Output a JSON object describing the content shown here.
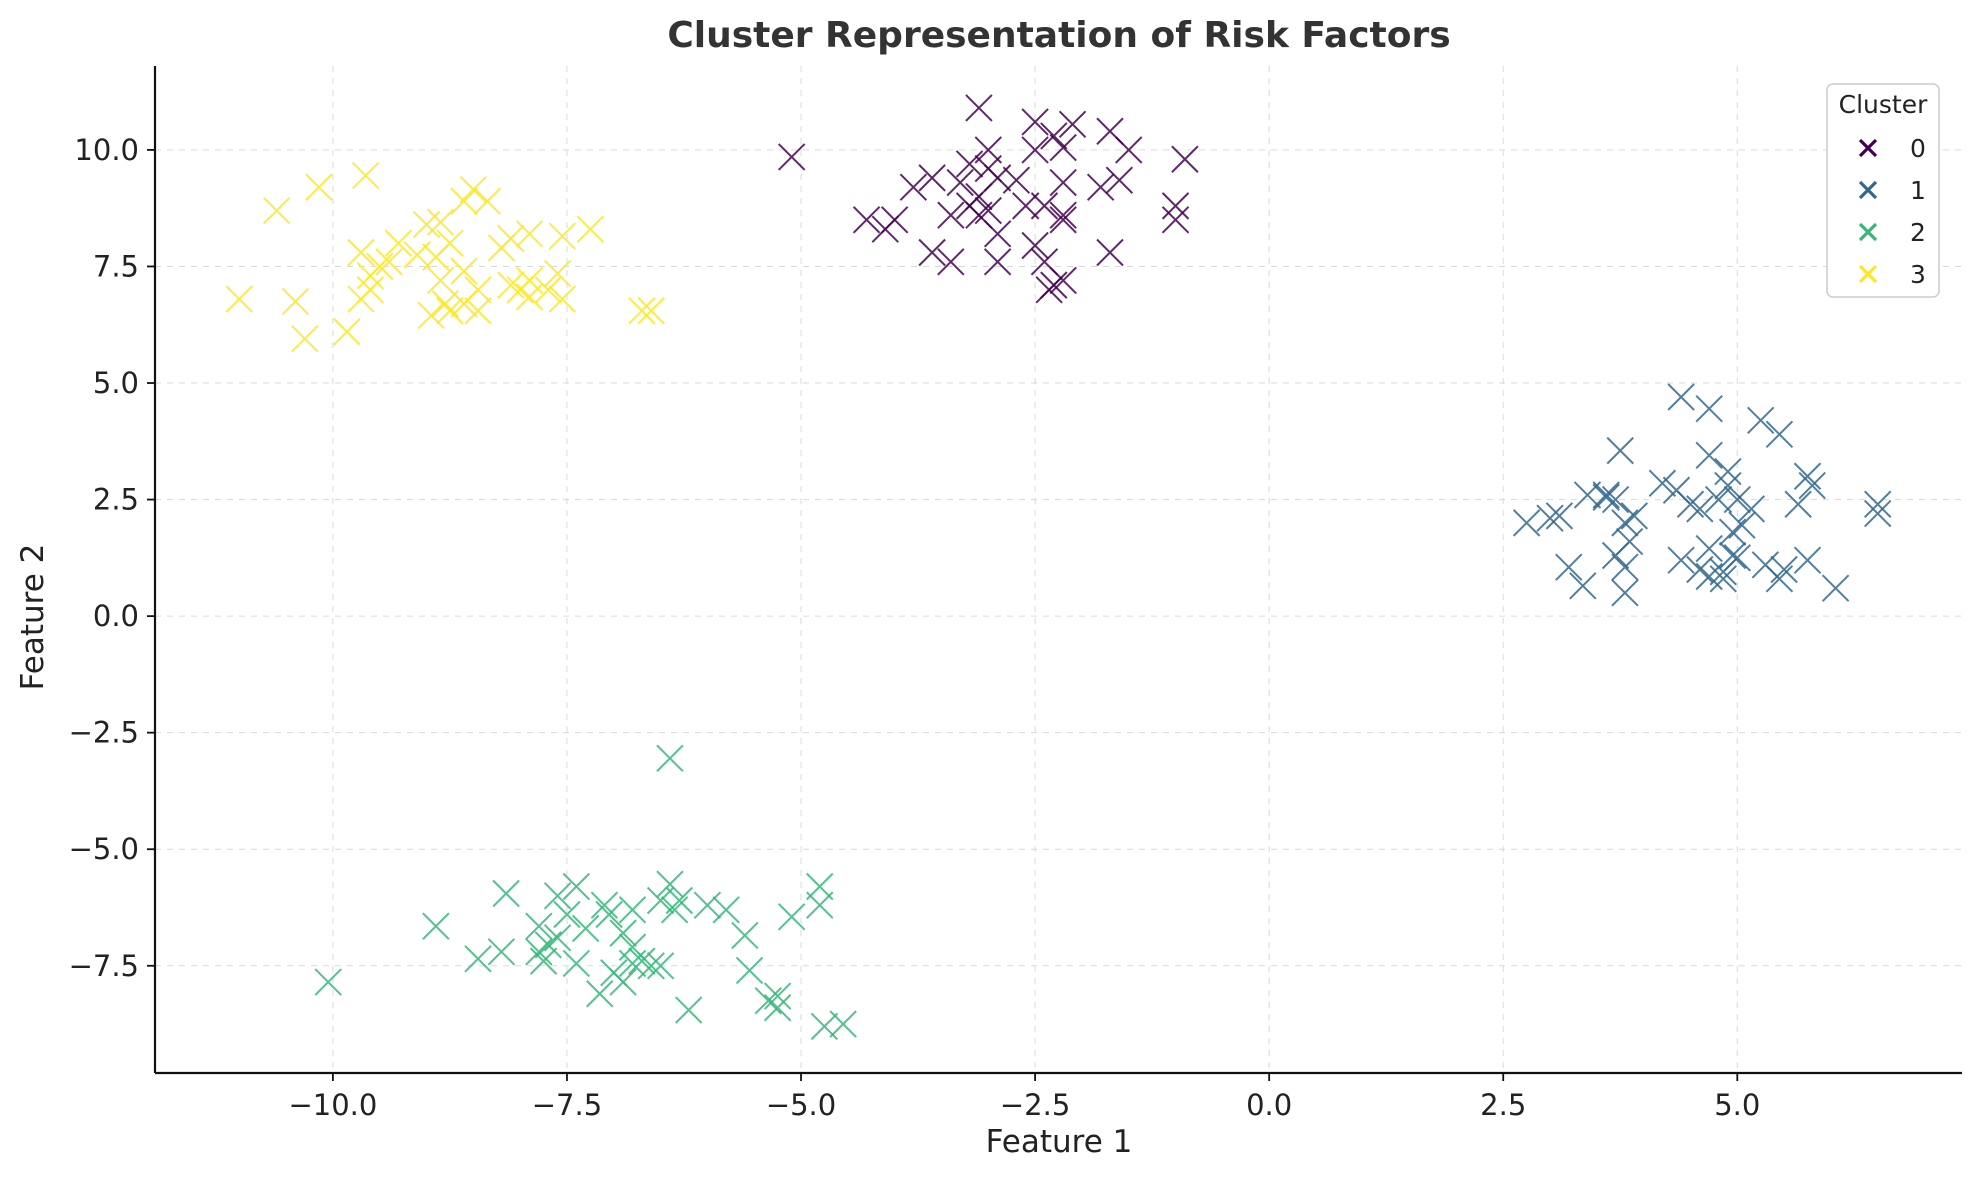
{
  "chart_data": {
    "type": "scatter",
    "title": "Cluster Representation of Risk Factors",
    "xlabel": "Feature 1",
    "ylabel": "Feature 2",
    "xlim": [
      -11.9,
      7.4
    ],
    "ylim": [
      -9.8,
      11.8
    ],
    "xticks": [
      -10.0,
      -7.5,
      -5.0,
      -2.5,
      0.0,
      2.5,
      5.0
    ],
    "xtick_labels": [
      "−10.0",
      "−7.5",
      "−5.0",
      "−2.5",
      "0.0",
      "2.5",
      "5.0"
    ],
    "yticks": [
      -7.5,
      -5.0,
      -2.5,
      0.0,
      2.5,
      5.0,
      7.5,
      10.0
    ],
    "ytick_labels": [
      "−7.5",
      "−5.0",
      "−2.5",
      "0.0",
      "2.5",
      "5.0",
      "7.5",
      "10.0"
    ],
    "grid": true,
    "marker": "x",
    "legend": {
      "title": "Cluster",
      "position": "top-right",
      "entries": [
        "0",
        "1",
        "2",
        "3"
      ]
    },
    "series": [
      {
        "name": "0",
        "color": "#440154",
        "points": [
          [
            -5.1,
            9.85
          ],
          [
            -3.1,
            10.9
          ],
          [
            -2.5,
            10.6
          ],
          [
            -2.1,
            10.55
          ],
          [
            -2.3,
            10.3
          ],
          [
            -2.5,
            10.0
          ],
          [
            -2.2,
            10.05
          ],
          [
            -1.7,
            10.4
          ],
          [
            -1.5,
            10.0
          ],
          [
            -0.9,
            9.8
          ],
          [
            -3.0,
            10.0
          ],
          [
            -3.2,
            9.7
          ],
          [
            -3.0,
            9.6
          ],
          [
            -2.9,
            9.4
          ],
          [
            -3.6,
            9.4
          ],
          [
            -3.8,
            9.2
          ],
          [
            -3.3,
            9.3
          ],
          [
            -2.7,
            9.35
          ],
          [
            -2.2,
            9.3
          ],
          [
            -1.8,
            9.2
          ],
          [
            -1.6,
            9.35
          ],
          [
            -3.1,
            9.0
          ],
          [
            -3.2,
            8.8
          ],
          [
            -3.0,
            8.7
          ],
          [
            -2.6,
            8.8
          ],
          [
            -2.4,
            8.8
          ],
          [
            -2.2,
            8.6
          ],
          [
            -4.3,
            8.5
          ],
          [
            -4.0,
            8.5
          ],
          [
            -4.1,
            8.3
          ],
          [
            -3.4,
            8.6
          ],
          [
            -3.1,
            8.6
          ],
          [
            -2.2,
            8.5
          ],
          [
            -2.9,
            8.2
          ],
          [
            -1.0,
            8.8
          ],
          [
            -1.0,
            8.5
          ],
          [
            -3.6,
            7.8
          ],
          [
            -3.4,
            7.6
          ],
          [
            -2.9,
            7.6
          ],
          [
            -2.5,
            7.95
          ],
          [
            -2.4,
            7.6
          ],
          [
            -2.3,
            7.1
          ],
          [
            -2.2,
            7.2
          ],
          [
            -2.35,
            7.0
          ],
          [
            -1.7,
            7.8
          ]
        ]
      },
      {
        "name": "1",
        "color": "#31688e",
        "points": [
          [
            4.4,
            4.7
          ],
          [
            4.7,
            4.45
          ],
          [
            5.25,
            4.2
          ],
          [
            5.45,
            3.9
          ],
          [
            3.75,
            3.55
          ],
          [
            4.7,
            3.45
          ],
          [
            4.9,
            3.1
          ],
          [
            5.75,
            3.0
          ],
          [
            5.8,
            2.8
          ],
          [
            4.2,
            2.85
          ],
          [
            4.9,
            2.8
          ],
          [
            4.35,
            2.7
          ],
          [
            3.4,
            2.6
          ],
          [
            3.6,
            2.55
          ],
          [
            3.7,
            2.5
          ],
          [
            4.5,
            2.4
          ],
          [
            4.8,
            2.5
          ],
          [
            5.0,
            2.5
          ],
          [
            5.65,
            2.4
          ],
          [
            6.5,
            2.4
          ],
          [
            6.5,
            2.2
          ],
          [
            3.0,
            2.1
          ],
          [
            3.1,
            2.15
          ],
          [
            3.9,
            2.15
          ],
          [
            3.8,
            2.0
          ],
          [
            4.6,
            2.3
          ],
          [
            5.15,
            2.3
          ],
          [
            2.75,
            2.0
          ],
          [
            5.05,
            1.95
          ],
          [
            4.95,
            1.8
          ],
          [
            3.85,
            1.6
          ],
          [
            3.7,
            1.3
          ],
          [
            4.7,
            1.45
          ],
          [
            4.95,
            1.3
          ],
          [
            4.4,
            1.2
          ],
          [
            5.3,
            1.1
          ],
          [
            5.75,
            1.2
          ],
          [
            3.2,
            1.05
          ],
          [
            3.8,
            1.05
          ],
          [
            4.6,
            1.0
          ],
          [
            5.5,
            1.0
          ],
          [
            4.7,
            0.85
          ],
          [
            4.85,
            0.8
          ],
          [
            5.45,
            0.8
          ],
          [
            3.35,
            0.65
          ],
          [
            3.8,
            0.5
          ],
          [
            6.05,
            0.6
          ],
          [
            3.6,
            2.6
          ],
          [
            4.85,
            0.95
          ],
          [
            5.0,
            1.25
          ]
        ]
      },
      {
        "name": "2",
        "color": "#35b779",
        "points": [
          [
            -6.4,
            -3.05
          ],
          [
            -4.8,
            -5.8
          ],
          [
            -7.4,
            -5.8
          ],
          [
            -6.4,
            -5.75
          ],
          [
            -8.15,
            -5.95
          ],
          [
            -7.6,
            -6.0
          ],
          [
            -7.1,
            -6.2
          ],
          [
            -6.8,
            -6.3
          ],
          [
            -6.5,
            -6.1
          ],
          [
            -6.3,
            -6.1
          ],
          [
            -6.0,
            -6.2
          ],
          [
            -5.8,
            -6.3
          ],
          [
            -4.8,
            -6.2
          ],
          [
            -7.5,
            -6.4
          ],
          [
            -5.1,
            -6.45
          ],
          [
            -8.9,
            -6.65
          ],
          [
            -7.8,
            -6.65
          ],
          [
            -7.3,
            -6.7
          ],
          [
            -6.9,
            -6.8
          ],
          [
            -7.6,
            -6.9
          ],
          [
            -5.6,
            -6.85
          ],
          [
            -7.7,
            -7.05
          ],
          [
            -6.8,
            -7.1
          ],
          [
            -8.2,
            -7.2
          ],
          [
            -7.8,
            -7.2
          ],
          [
            -8.45,
            -7.35
          ],
          [
            -7.75,
            -7.4
          ],
          [
            -7.4,
            -7.45
          ],
          [
            -6.8,
            -7.45
          ],
          [
            -6.6,
            -7.5
          ],
          [
            -6.7,
            -7.4
          ],
          [
            -6.5,
            -7.5
          ],
          [
            -5.55,
            -7.6
          ],
          [
            -7.0,
            -7.65
          ],
          [
            -6.9,
            -7.85
          ],
          [
            -10.05,
            -7.85
          ],
          [
            -7.15,
            -8.1
          ],
          [
            -5.35,
            -8.25
          ],
          [
            -5.25,
            -8.15
          ],
          [
            -5.25,
            -8.4
          ],
          [
            -6.2,
            -8.45
          ],
          [
            -4.75,
            -8.8
          ],
          [
            -4.55,
            -8.75
          ],
          [
            -6.35,
            -6.3
          ],
          [
            -7.05,
            -6.4
          ]
        ]
      },
      {
        "name": "3",
        "color": "#fde725",
        "points": [
          [
            -9.65,
            9.45
          ],
          [
            -10.15,
            9.2
          ],
          [
            -10.6,
            8.7
          ],
          [
            -8.5,
            9.15
          ],
          [
            -8.6,
            8.9
          ],
          [
            -8.35,
            8.9
          ],
          [
            -8.85,
            8.45
          ],
          [
            -9.0,
            8.4
          ],
          [
            -9.3,
            8.0
          ],
          [
            -8.75,
            8.0
          ],
          [
            -8.1,
            8.1
          ],
          [
            -7.9,
            8.2
          ],
          [
            -7.55,
            8.15
          ],
          [
            -7.25,
            8.3
          ],
          [
            -9.7,
            7.8
          ],
          [
            -9.1,
            7.75
          ],
          [
            -8.9,
            7.7
          ],
          [
            -8.2,
            7.9
          ],
          [
            -9.5,
            7.5
          ],
          [
            -9.6,
            7.3
          ],
          [
            -8.6,
            7.4
          ],
          [
            -7.6,
            7.35
          ],
          [
            -9.6,
            7.0
          ],
          [
            -8.85,
            7.2
          ],
          [
            -8.45,
            7.0
          ],
          [
            -8.1,
            7.1
          ],
          [
            -8.0,
            7.0
          ],
          [
            -7.9,
            7.2
          ],
          [
            -7.7,
            7.0
          ],
          [
            -11.0,
            6.8
          ],
          [
            -10.4,
            6.75
          ],
          [
            -9.7,
            6.8
          ],
          [
            -8.8,
            6.7
          ],
          [
            -8.6,
            6.7
          ],
          [
            -8.45,
            6.55
          ],
          [
            -7.9,
            6.85
          ],
          [
            -7.55,
            6.8
          ],
          [
            -8.95,
            6.45
          ],
          [
            -6.7,
            6.55
          ],
          [
            -6.6,
            6.55
          ],
          [
            -9.85,
            6.1
          ],
          [
            -10.3,
            5.95
          ],
          [
            -8.75,
            6.55
          ],
          [
            -9.4,
            7.6
          ]
        ]
      }
    ]
  }
}
